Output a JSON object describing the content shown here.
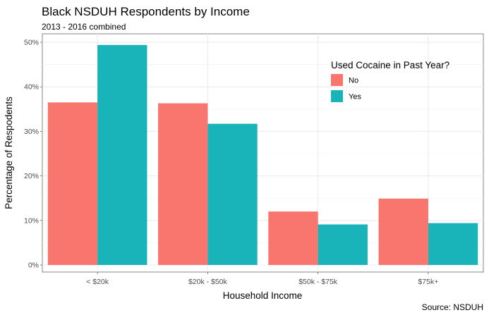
{
  "chart_data": {
    "type": "bar",
    "title": "Black NSDUH Respondents by Income",
    "subtitle": "2013 - 2016 combined",
    "xlabel": "Household Income",
    "ylabel": "Percentage of Respodents",
    "caption": "Source: NSDUH",
    "categories": [
      "< $20k",
      "$20k - $50k",
      "$50k - $75k",
      "$75k+"
    ],
    "ylim": [
      0,
      0.5
    ],
    "yticks": [
      0,
      0.1,
      0.2,
      0.3,
      0.4,
      0.5
    ],
    "ytick_labels": [
      "0%",
      "10%",
      "20%",
      "30%",
      "40%",
      "50%"
    ],
    "legend": {
      "title": "Used Cocaine in Past Year?",
      "position": "top-right"
    },
    "grid": true,
    "series": [
      {
        "name": "No",
        "color": "#F8766D",
        "values": [
          0.365,
          0.363,
          0.12,
          0.149
        ]
      },
      {
        "name": "Yes",
        "color": "#19B3BA",
        "values": [
          0.494,
          0.317,
          0.091,
          0.094
        ]
      }
    ]
  }
}
